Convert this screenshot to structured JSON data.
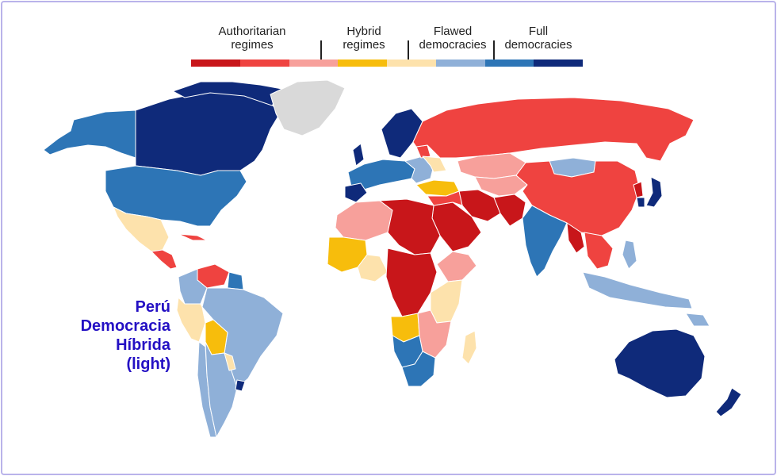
{
  "legend": {
    "categories": [
      {
        "label": "Authoritarian\nregimes",
        "colors": [
          "#c8161a",
          "#ef4340",
          "#f7a09b"
        ]
      },
      {
        "label": "Hybrid\nregimes",
        "colors": [
          "#f7bd0c",
          "#fde2ac"
        ]
      },
      {
        "label": "Flawed\ndemocracies",
        "colors": [
          "#8fb0d8",
          "#2d75b6"
        ]
      },
      {
        "label": "Full\ndemocracies",
        "colors": [
          "#0f2a7a"
        ]
      }
    ]
  },
  "callout": {
    "lines": [
      "Perú",
      "Democracia",
      "Híbrida",
      "(light)"
    ],
    "color": "#2410c4"
  },
  "colors": {
    "authoritarian_dark": "#c8161a",
    "authoritarian_mid": "#ef4340",
    "authoritarian_light": "#f7a09b",
    "hybrid_dark": "#f7bd0c",
    "hybrid_light": "#fde2ac",
    "flawed_light": "#8fb0d8",
    "flawed_dark": "#2d75b6",
    "full": "#0f2a7a",
    "no_data": "#d9d9d9",
    "border": "#b9b3ea"
  }
}
